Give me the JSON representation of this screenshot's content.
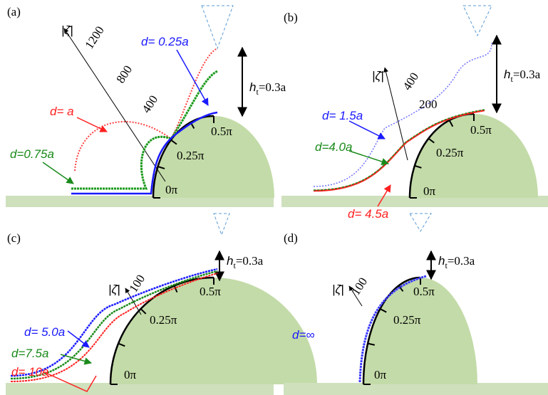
{
  "panels": [
    {
      "label": "(a)",
      "axis_label": "|ζ̄|",
      "axis_ticks": [
        1200,
        800,
        400
      ],
      "curve_labels": [
        "d= 0.25a",
        "d= a",
        "d=0.75a"
      ],
      "height_label": {
        "symbol": "h",
        "subscript": "t",
        "value": "=0.3a"
      },
      "angle_labels": [
        "0π",
        "0.25π",
        "0.5π"
      ]
    },
    {
      "label": "(b)",
      "axis_label": "|ζ̄|",
      "axis_ticks": [
        400,
        200
      ],
      "curve_labels": [
        "d= 1.5a",
        "d=4.0a",
        "d= 4.5a"
      ],
      "height_label": {
        "symbol": "h",
        "subscript": "t",
        "value": "=0.3a"
      },
      "angle_labels": [
        "0π",
        "0.25π",
        "0.5π"
      ]
    },
    {
      "label": "(c)",
      "axis_label": "|ζ̄|",
      "axis_ticks": [
        100
      ],
      "curve_labels": [
        "d= 5.0a",
        "d=7.5a",
        "d= 10a"
      ],
      "height_label": {
        "symbol": "h",
        "subscript": "t",
        "value": "=0.3a"
      },
      "angle_labels": [
        "0π",
        "0.25π",
        "0.5π"
      ]
    },
    {
      "label": "(d)",
      "axis_label": "|ζ̄|",
      "axis_ticks": [
        100
      ],
      "curve_labels": [
        "d=∞"
      ],
      "height_label": {
        "symbol": "h",
        "subscript": "t",
        "value": "=0.3a"
      },
      "angle_labels": [
        "0π",
        "0.25π",
        "0.5π"
      ]
    }
  ]
}
